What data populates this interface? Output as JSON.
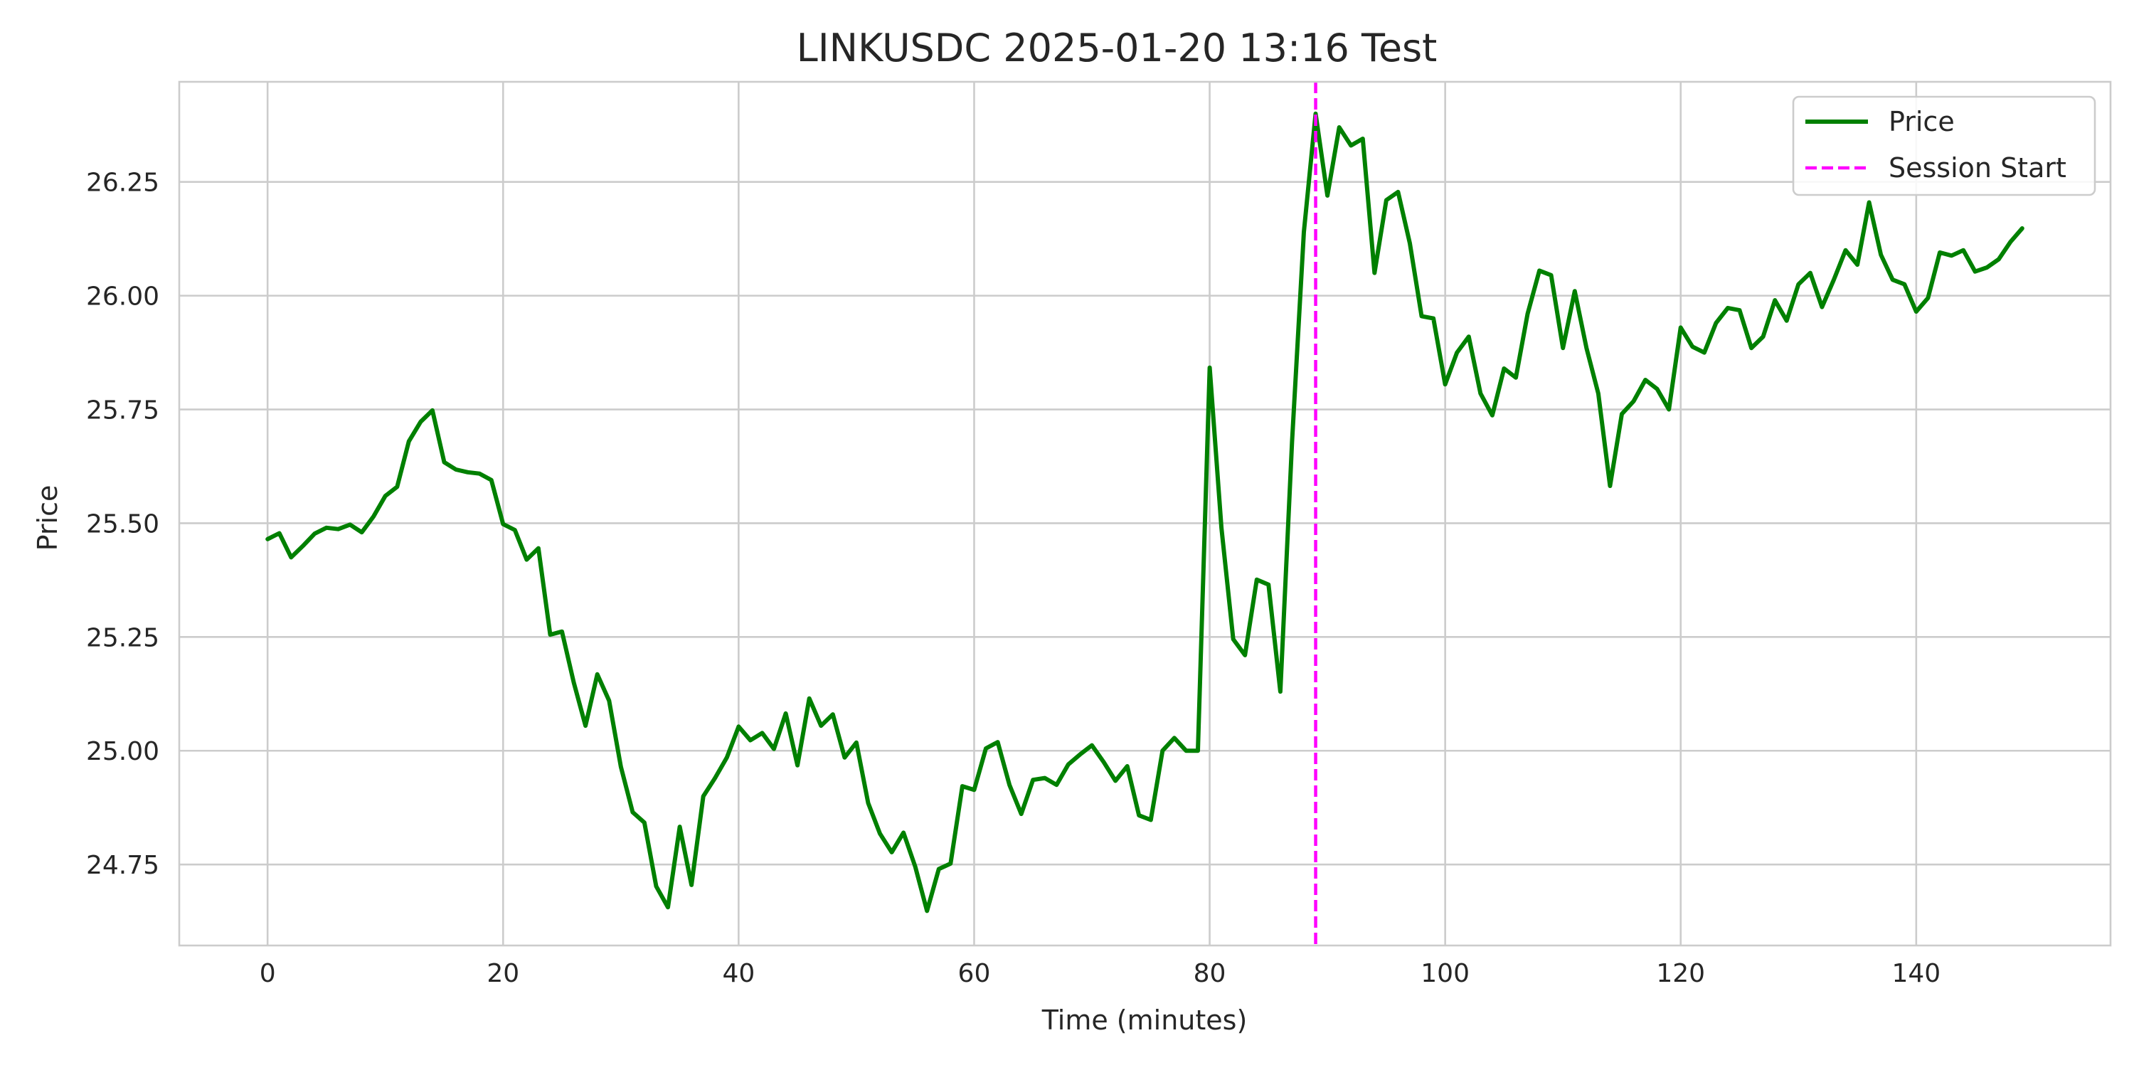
{
  "chart_data": {
    "type": "line",
    "title": "LINKUSDC 2025-01-20 13:16  Test",
    "xlabel": "Time (minutes)",
    "ylabel": "Price",
    "xlim": [
      -7.5,
      156.5
    ],
    "ylim": [
      24.572,
      26.47
    ],
    "x_ticks": [
      0,
      20,
      40,
      60,
      80,
      100,
      120,
      140
    ],
    "y_ticks": [
      24.75,
      25.0,
      25.25,
      25.5,
      25.75,
      26.0,
      26.25
    ],
    "x_tick_labels": [
      "0",
      "20",
      "40",
      "60",
      "80",
      "100",
      "120",
      "140"
    ],
    "y_tick_labels": [
      "24.75",
      "25.00",
      "25.25",
      "25.50",
      "25.75",
      "26.00",
      "26.25"
    ],
    "grid": true,
    "legend_position": "top-right",
    "series": [
      {
        "name": "Price",
        "color": "#008000",
        "style": "solid",
        "x": [
          0,
          1,
          2,
          3,
          4,
          5,
          6,
          7,
          8,
          9,
          10,
          11,
          12,
          13,
          14,
          15,
          16,
          17,
          18,
          19,
          20,
          21,
          22,
          23,
          24,
          25,
          26,
          27,
          28,
          29,
          30,
          31,
          32,
          33,
          34,
          35,
          36,
          37,
          38,
          39,
          40,
          41,
          42,
          43,
          44,
          45,
          46,
          47,
          48,
          49,
          50,
          51,
          52,
          53,
          54,
          55,
          56,
          57,
          58,
          59,
          60,
          61,
          62,
          63,
          64,
          65,
          66,
          67,
          68,
          69,
          70,
          71,
          72,
          73,
          74,
          75,
          76,
          77,
          78,
          79,
          80,
          81,
          82,
          83,
          84,
          85,
          86,
          87,
          88,
          89,
          90,
          91,
          92,
          93,
          94,
          95,
          96,
          97,
          98,
          99,
          100,
          101,
          102,
          103,
          104,
          105,
          106,
          107,
          108,
          109,
          110,
          111,
          112,
          113,
          114,
          115,
          116,
          117,
          118,
          119,
          120,
          121,
          122,
          123,
          124,
          125,
          126,
          127,
          128,
          129,
          130,
          131,
          132,
          133,
          134,
          135,
          136,
          137,
          138,
          139,
          140,
          141,
          142,
          143,
          144,
          145,
          146,
          147,
          148,
          149
        ],
        "y": [
          25.465,
          25.478,
          25.425,
          25.45,
          25.477,
          25.49,
          25.487,
          25.497,
          25.48,
          25.515,
          25.56,
          25.58,
          25.68,
          25.723,
          25.748,
          25.634,
          25.618,
          25.612,
          25.609,
          25.595,
          25.498,
          25.485,
          25.42,
          25.445,
          25.255,
          25.262,
          25.15,
          25.055,
          25.168,
          25.11,
          24.965,
          24.865,
          24.842,
          24.702,
          24.656,
          24.833,
          24.705,
          24.9,
          24.94,
          24.985,
          25.053,
          25.023,
          25.039,
          25.004,
          25.082,
          24.968,
          25.115,
          25.055,
          25.08,
          24.985,
          25.018,
          24.885,
          24.818,
          24.777,
          24.82,
          24.745,
          24.648,
          24.74,
          24.752,
          24.922,
          24.914,
          25.005,
          25.019,
          24.925,
          24.861,
          24.936,
          24.94,
          24.925,
          24.97,
          24.992,
          25.012,
          24.975,
          24.934,
          24.966,
          24.858,
          24.848,
          25.0,
          25.028,
          25.0,
          25.0,
          25.842,
          25.49,
          25.245,
          25.21,
          25.376,
          25.365,
          25.13,
          25.68,
          26.14,
          26.4,
          26.22,
          26.37,
          26.33,
          26.345,
          26.05,
          26.21,
          26.228,
          26.115,
          25.955,
          25.95,
          25.805,
          25.875,
          25.91,
          25.785,
          25.737,
          25.84,
          25.82,
          25.96,
          26.055,
          26.045,
          25.885,
          26.01,
          25.885,
          25.785,
          25.582,
          25.74,
          25.768,
          25.815,
          25.795,
          25.75,
          25.93,
          25.888,
          25.875,
          25.94,
          25.973,
          25.968,
          25.885,
          25.91,
          25.99,
          25.945,
          26.025,
          26.05,
          25.975,
          26.035,
          26.1,
          26.068,
          26.205,
          26.09,
          26.035,
          26.025,
          25.965,
          25.995,
          26.095,
          26.088,
          26.1,
          26.053,
          26.062,
          26.08,
          26.118,
          26.148
        ]
      },
      {
        "name": "Session Start",
        "color": "#ff00ff",
        "style": "dashed",
        "vline_x": 89
      }
    ]
  }
}
